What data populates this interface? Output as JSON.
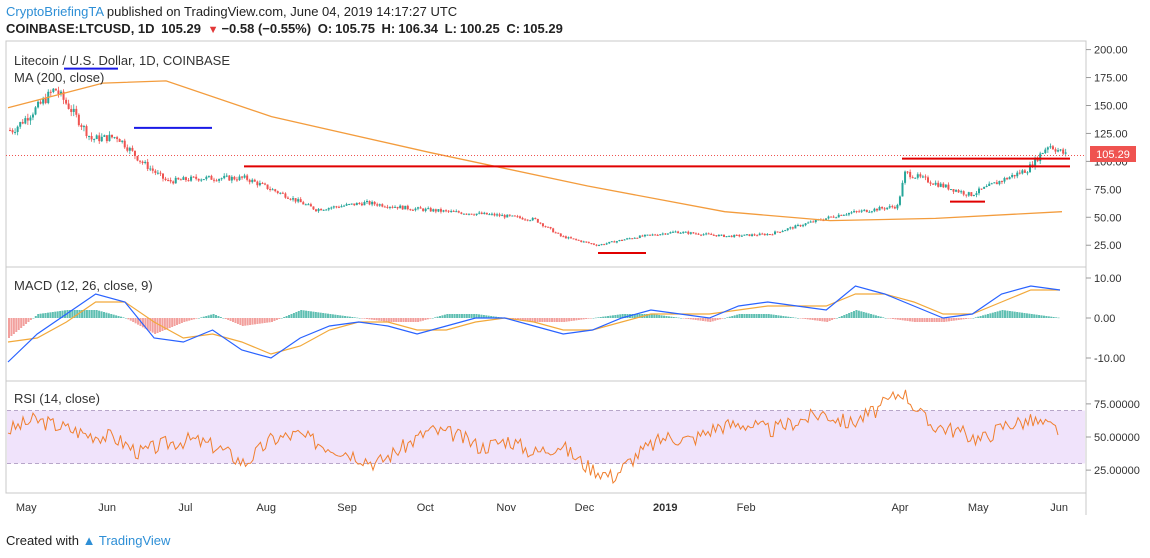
{
  "header": {
    "author": "CryptoBriefingTA",
    "published": "published on TradingView.com, June 04, 2019 14:17:27 UTC",
    "symbol": "COINBASE:LTCUSD, 1D",
    "price": "105.29",
    "change": "−0.58 (−0.55%)",
    "o_label": "O:",
    "o": "105.75",
    "h_label": "H:",
    "h": "106.34",
    "l_label": "L:",
    "l": "100.25",
    "c_label": "C:",
    "c": "105.29"
  },
  "panes": {
    "main_title": "Litecoin / U.S. Dollar, 1D, COINBASE",
    "ma_label": "MA (200, close)",
    "macd_label": "MACD (12, 26, close, 9)",
    "rsi_label": "RSI (14, close)",
    "last_price_tag": "105.29"
  },
  "colors": {
    "up": "#26a69a",
    "down": "#ef5350",
    "ma": "#f39c3d",
    "macd": "#2962ff",
    "signal": "#f2a93b",
    "rsi": "#f07f2e",
    "rsi_band": "#f0e3fb",
    "annot_red": "#e00000",
    "annot_blue": "#1a1ae6"
  },
  "footer": {
    "created": "Created with",
    "brand": "TradingView"
  },
  "chart_data": [
    {
      "type": "candlestick",
      "title": "Litecoin / U.S. Dollar, 1D, COINBASE",
      "ylim": [
        10,
        205
      ],
      "y_ticks": [
        "200.00",
        "175.00",
        "150.00",
        "125.00",
        "100.00",
        "75.00",
        "50.00",
        "25.00"
      ],
      "x_ticks": [
        "May",
        "Jun",
        "Jul",
        "Aug",
        "Sep",
        "Oct",
        "Nov",
        "Dec",
        "2019",
        "Feb",
        "Apr",
        "May",
        "Jun"
      ],
      "approx_close_path": [
        [
          "2018-04-26",
          128
        ],
        [
          "2018-05-06",
          150
        ],
        [
          "2018-05-12",
          165
        ],
        [
          "2018-05-18",
          147
        ],
        [
          "2018-05-26",
          120
        ],
        [
          "2018-06-05",
          122
        ],
        [
          "2018-06-14",
          100
        ],
        [
          "2018-06-24",
          82
        ],
        [
          "2018-07-06",
          85
        ],
        [
          "2018-07-24",
          85
        ],
        [
          "2018-08-08",
          70
        ],
        [
          "2018-08-20",
          57
        ],
        [
          "2018-09-08",
          63
        ],
        [
          "2018-09-25",
          58
        ],
        [
          "2018-10-10",
          55
        ],
        [
          "2018-10-28",
          52
        ],
        [
          "2018-11-12",
          48
        ],
        [
          "2018-11-22",
          33
        ],
        [
          "2018-12-06",
          25
        ],
        [
          "2018-12-20",
          32
        ],
        [
          "2019-01-05",
          37
        ],
        [
          "2019-01-25",
          33
        ],
        [
          "2019-02-10",
          35
        ],
        [
          "2019-02-25",
          45
        ],
        [
          "2019-03-10",
          53
        ],
        [
          "2019-03-31",
          60
        ],
        [
          "2019-04-03",
          90
        ],
        [
          "2019-04-15",
          80
        ],
        [
          "2019-04-28",
          70
        ],
        [
          "2019-05-10",
          83
        ],
        [
          "2019-05-20",
          93
        ],
        [
          "2019-05-28",
          115
        ],
        [
          "2019-06-04",
          105.29
        ]
      ],
      "series": [
        {
          "name": "MA (200, close)",
          "values": [
            [
              0,
              148
            ],
            [
              0.09,
              170
            ],
            [
              0.15,
              172
            ],
            [
              0.25,
              140
            ],
            [
              0.4,
              108
            ],
            [
              0.55,
              78
            ],
            [
              0.68,
              55
            ],
            [
              0.78,
              47
            ],
            [
              0.88,
              49
            ],
            [
              1.0,
              55
            ]
          ]
        }
      ],
      "annotations": {
        "resistance_levels": [
          95.5,
          102.5,
          99.5
        ],
        "support_levels": [
          64,
          18
        ],
        "blue_levels": [
          183,
          130
        ]
      }
    },
    {
      "type": "line",
      "title": "MACD (12, 26, close, 9)",
      "ylim": [
        -15,
        12
      ],
      "y_ticks": [
        "10.00",
        "0.00",
        "-10.00"
      ],
      "series": [
        {
          "name": "MACD",
          "values": [
            -11,
            -4,
            1,
            6,
            4,
            -5,
            -6,
            -3,
            -8,
            -10,
            -5,
            -2,
            -1,
            -2,
            -4,
            -2,
            0,
            0,
            -2,
            -4,
            -3,
            0,
            2,
            1,
            0,
            3,
            4,
            3,
            2,
            8,
            6,
            3,
            0,
            1,
            6,
            8,
            7
          ]
        },
        {
          "name": "Signal",
          "values": [
            -6,
            -5,
            -1,
            4,
            4,
            -1,
            -5,
            -4,
            -6,
            -9,
            -7,
            -3,
            -1,
            -1,
            -3,
            -3,
            -1,
            0,
            -1,
            -3,
            -3,
            -1,
            1,
            1,
            1,
            2,
            3,
            3,
            3,
            6,
            6,
            4,
            1,
            1,
            4,
            7,
            7
          ]
        }
      ]
    },
    {
      "type": "line",
      "title": "RSI (14, close)",
      "ylim": [
        10,
        90
      ],
      "y_ticks": [
        "75.00000",
        "50.00000",
        "25.00000"
      ],
      "bands": [
        30,
        70
      ],
      "series": [
        {
          "name": "RSI",
          "values": [
            55,
            63,
            58,
            52,
            50,
            38,
            45,
            48,
            42,
            30,
            48,
            52,
            44,
            38,
            30,
            42,
            55,
            52,
            42,
            48,
            38,
            44,
            28,
            20,
            38,
            50,
            48,
            58,
            60,
            55,
            62,
            68,
            60,
            70,
            85,
            60,
            55,
            48,
            60,
            62,
            55
          ]
        }
      ]
    }
  ]
}
